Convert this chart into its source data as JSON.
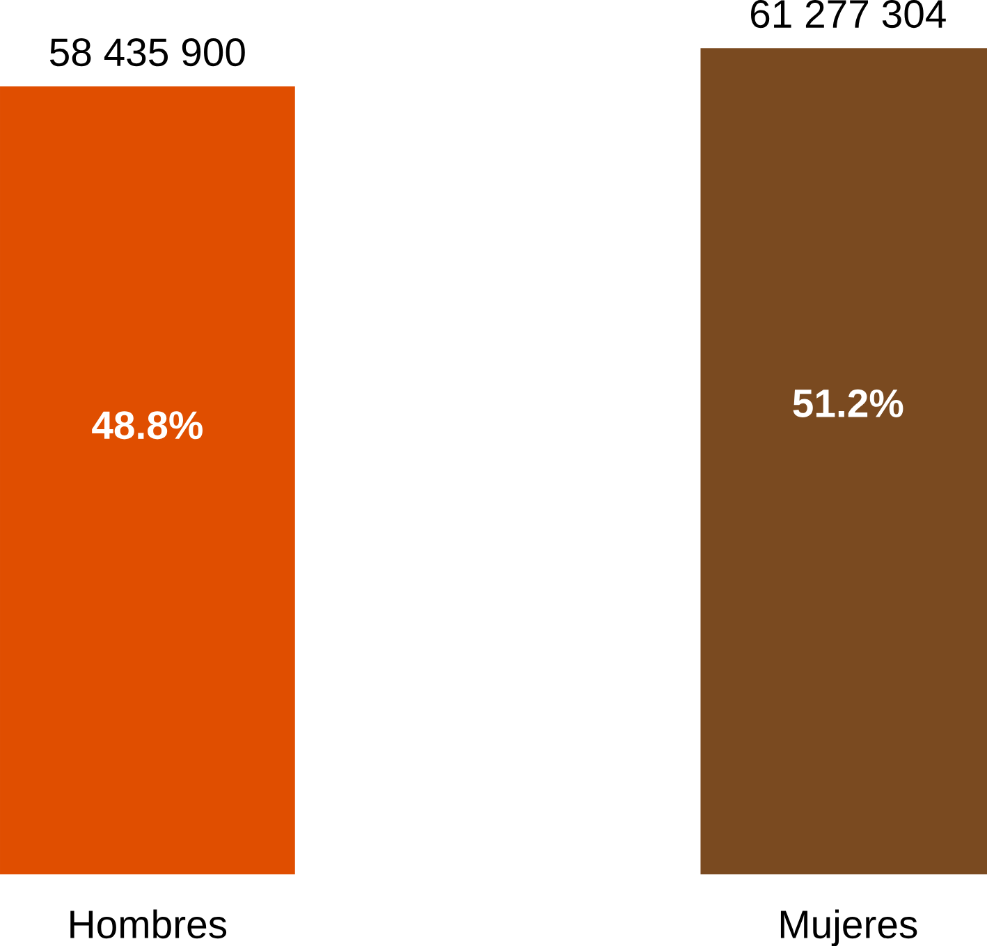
{
  "chart_data": {
    "type": "bar",
    "categories": [
      "Hombres",
      "Mujeres"
    ],
    "values": [
      58435900,
      61277304
    ],
    "colors": [
      "#e04e00",
      "#7a4a20"
    ],
    "value_labels": [
      "58 435 900",
      "61 277 304"
    ],
    "annotations": [
      "48.8%",
      "51.2%"
    ]
  }
}
